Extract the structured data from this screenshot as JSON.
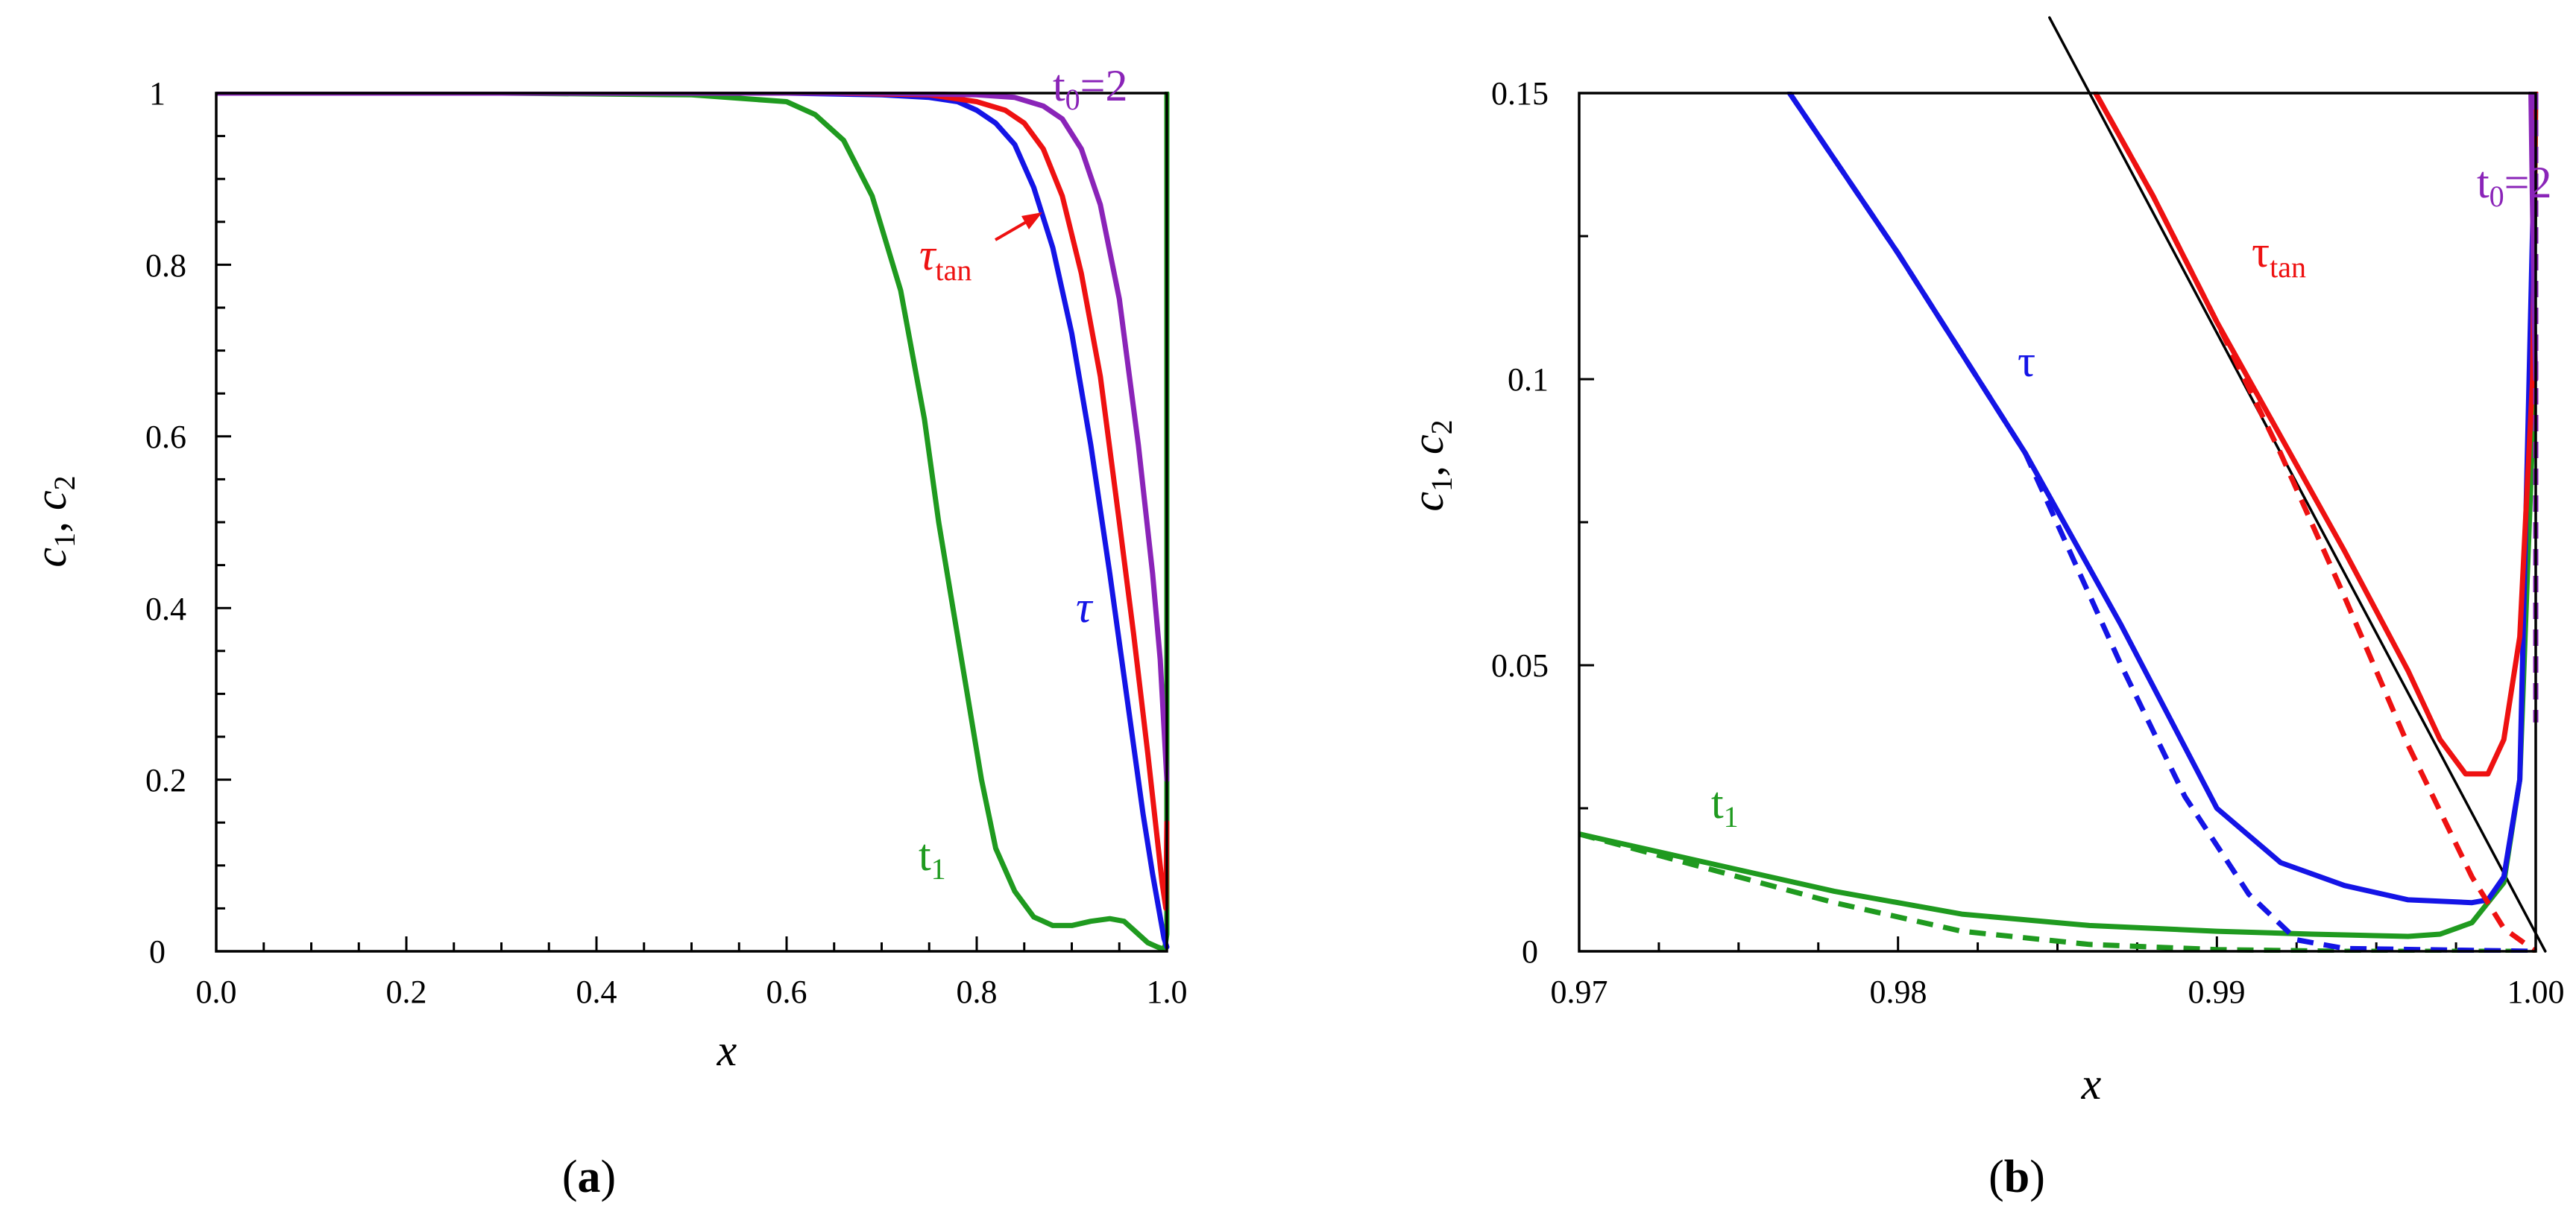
{
  "panels": [
    {
      "caption": {
        "open": "(",
        "letter": "a",
        "close": ")"
      },
      "ylabel": {
        "c1": "c",
        "c1sub": "1",
        "sep": ", ",
        "c2": "c",
        "c2sub": "2"
      },
      "xlabel": "x"
    },
    {
      "caption": {
        "open": "(",
        "letter": "b",
        "close": ")"
      },
      "ylabel": {
        "c1": "c",
        "c1sub": "1",
        "sep": ", ",
        "c2": "c",
        "c2sub": "2"
      },
      "xlabel": "x"
    }
  ],
  "colors": {
    "green": "#1f9a1f",
    "blue": "#1414e6",
    "red": "#ee1111",
    "purple": "#8a24b8",
    "black": "#000000"
  },
  "chart_data": [
    {
      "type": "line",
      "xlabel": "x",
      "ylabel": "c1, c2",
      "xlim": [
        0,
        1
      ],
      "ylim": [
        0,
        1
      ],
      "x_ticks": [
        "0.0",
        "0.2",
        "0.4",
        "0.6",
        "0.8",
        "1.0"
      ],
      "y_ticks": [
        "0",
        "0.2",
        "0.4",
        "0.6",
        "0.8",
        "1"
      ],
      "grid": false,
      "labels": {
        "t1": {
          "base": "t",
          "sub": "1"
        },
        "tau": {
          "base": "τ"
        },
        "tau_tan": {
          "base": "τ",
          "sub": "tan"
        },
        "t0": {
          "base": "t",
          "sub": "0",
          "tail": "=2"
        }
      },
      "series": [
        {
          "id": "t1",
          "color": "green",
          "style": "solid",
          "x": [
            0,
            0.3,
            0.5,
            0.6,
            0.63,
            0.66,
            0.69,
            0.72,
            0.745,
            0.76,
            0.775,
            0.79,
            0.805,
            0.82,
            0.84,
            0.86,
            0.88,
            0.9,
            0.92,
            0.94,
            0.955,
            0.97,
            0.98,
            0.99,
            0.995,
            0.998,
            1.0,
            1.0,
            1.0
          ],
          "y": [
            1,
            1,
            0.998,
            0.99,
            0.975,
            0.945,
            0.88,
            0.77,
            0.62,
            0.5,
            0.4,
            0.3,
            0.2,
            0.12,
            0.07,
            0.04,
            0.03,
            0.03,
            0.035,
            0.038,
            0.035,
            0.02,
            0.01,
            0.005,
            0.003,
            0.005,
            0.02,
            0.5,
            1.0
          ]
        },
        {
          "id": "tau",
          "color": "blue",
          "style": "solid",
          "x": [
            0,
            0.6,
            0.7,
            0.75,
            0.78,
            0.8,
            0.82,
            0.84,
            0.86,
            0.88,
            0.9,
            0.92,
            0.94,
            0.96,
            0.975,
            0.985,
            0.993,
            0.997,
            1.0
          ],
          "y": [
            1,
            1,
            0.998,
            0.995,
            0.99,
            0.98,
            0.965,
            0.94,
            0.89,
            0.82,
            0.72,
            0.59,
            0.44,
            0.28,
            0.16,
            0.09,
            0.04,
            0.015,
            0.005
          ]
        },
        {
          "id": "tau_tan",
          "color": "red",
          "style": "solid",
          "x": [
            0,
            0.65,
            0.75,
            0.8,
            0.83,
            0.85,
            0.87,
            0.89,
            0.91,
            0.93,
            0.95,
            0.965,
            0.98,
            0.99,
            0.995,
            0.999,
            1.0
          ],
          "y": [
            1,
            1,
            0.998,
            0.99,
            0.98,
            0.965,
            0.935,
            0.88,
            0.79,
            0.67,
            0.5,
            0.37,
            0.23,
            0.13,
            0.08,
            0.05,
            0.15
          ]
        },
        {
          "id": "t0",
          "color": "purple",
          "style": "solid",
          "x": [
            0,
            0.7,
            0.8,
            0.84,
            0.87,
            0.89,
            0.91,
            0.93,
            0.95,
            0.97,
            0.985,
            0.993,
            0.997,
            1.0
          ],
          "y": [
            1,
            1,
            0.998,
            0.995,
            0.985,
            0.97,
            0.935,
            0.87,
            0.76,
            0.59,
            0.44,
            0.34,
            0.26,
            0.2
          ]
        }
      ]
    },
    {
      "type": "line",
      "xlabel": "x",
      "ylabel": "c1, c2",
      "xlim": [
        0.97,
        1.0
      ],
      "ylim": [
        0,
        0.15
      ],
      "x_ticks": [
        "0.97",
        "0.98",
        "0.99",
        "1.00"
      ],
      "y_ticks": [
        "0",
        "0.05",
        "0.1",
        "0.15"
      ],
      "grid": false,
      "labels": {
        "t1": {
          "base": "t",
          "sub": "1"
        },
        "tau": {
          "base": "τ"
        },
        "tau_tan": {
          "base": "τ",
          "sub": "tan"
        },
        "t0": {
          "base": "t",
          "sub": "0",
          "tail": "=2"
        }
      },
      "series": [
        {
          "id": "tangent",
          "color": "black",
          "style": "solid",
          "x": [
            0.98475,
            1.0003
          ],
          "y": [
            0.1632,
            0.0
          ]
        },
        {
          "id": "t1_solid",
          "color": "green",
          "style": "solid",
          "x": [
            0.97,
            0.974,
            0.978,
            0.982,
            0.986,
            0.99,
            0.993,
            0.996,
            0.997,
            0.998,
            0.999,
            0.9995,
            0.9999,
            1.0
          ],
          "y": [
            0.0205,
            0.0155,
            0.0105,
            0.0065,
            0.0045,
            0.0035,
            0.003,
            0.0026,
            0.003,
            0.005,
            0.012,
            0.03,
            0.09,
            0.15
          ]
        },
        {
          "id": "t1_dashed",
          "color": "green",
          "style": "dashed",
          "x": [
            0.97,
            0.974,
            0.978,
            0.982,
            0.986,
            0.99,
            0.994,
            1.0
          ],
          "y": [
            0.0205,
            0.0145,
            0.0085,
            0.0035,
            0.0012,
            0.0003,
            0.0,
            0.0
          ]
        },
        {
          "id": "tau_solid",
          "color": "blue",
          "style": "solid",
          "x": [
            0.9766,
            0.98,
            0.984,
            0.987,
            0.99,
            0.992,
            0.994,
            0.996,
            0.998,
            0.9985,
            0.999,
            0.9995,
            1.0
          ],
          "y": [
            0.15,
            0.122,
            0.087,
            0.057,
            0.025,
            0.0155,
            0.0115,
            0.009,
            0.0085,
            0.009,
            0.013,
            0.03,
            0.15
          ]
        },
        {
          "id": "tau_dashed",
          "color": "blue",
          "style": "dashed",
          "x": [
            0.9766,
            0.98,
            0.984,
            0.987,
            0.989,
            0.991,
            0.9925,
            0.994,
            1.0
          ],
          "y": [
            0.15,
            0.122,
            0.087,
            0.05,
            0.027,
            0.01,
            0.002,
            0.0005,
            0.0
          ]
        },
        {
          "id": "tau_tan_solid",
          "color": "red",
          "style": "solid",
          "x": [
            0.9862,
            0.988,
            0.99,
            0.992,
            0.994,
            0.996,
            0.997,
            0.9978,
            0.9985,
            0.999,
            0.9995,
            0.9999,
            1.0
          ],
          "y": [
            0.15,
            0.132,
            0.11,
            0.09,
            0.07,
            0.049,
            0.037,
            0.031,
            0.031,
            0.037,
            0.055,
            0.1,
            0.15
          ]
        },
        {
          "id": "tau_tan_dashed",
          "color": "red",
          "style": "dashed",
          "x": [
            0.9862,
            0.988,
            0.99,
            0.992,
            0.994,
            0.996,
            0.998,
            0.999,
            1.0
          ],
          "y": [
            0.15,
            0.132,
            0.11,
            0.087,
            0.062,
            0.036,
            0.013,
            0.004,
            0.0
          ]
        },
        {
          "id": "t0_solid",
          "color": "purple",
          "style": "solid",
          "x": [
            0.99985,
            0.9999,
            0.99995,
            1.0
          ],
          "y": [
            0.15,
            0.13,
            0.11,
            0.1
          ]
        },
        {
          "id": "t0_dashed",
          "color": "purple",
          "style": "dashed",
          "x": [
            1.0,
            1.0,
            1.0
          ],
          "y": [
            0.15,
            0.1,
            0.04
          ]
        }
      ]
    }
  ]
}
